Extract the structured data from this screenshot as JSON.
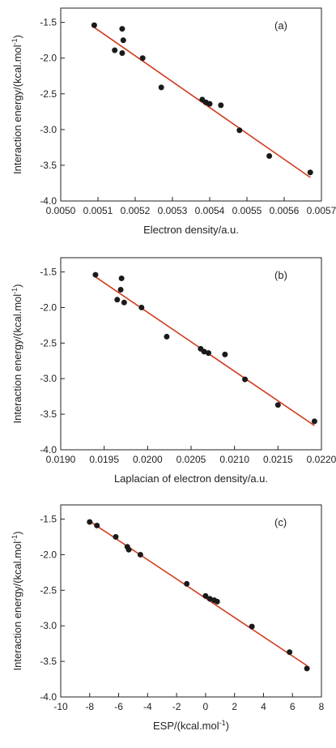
{
  "chart_data": [
    {
      "type": "scatter",
      "panel_label": "(a)",
      "xlabel": "Electron density/a.u.",
      "ylabel_main": "Interaction energy/(kcal.mol",
      "ylabel_sup": "-1",
      "ylabel_tail": ")",
      "xlim": [
        0.005,
        0.0057
      ],
      "ylim": [
        -4.0,
        -1.3
      ],
      "xticks": [
        0.005,
        0.0051,
        0.0052,
        0.0053,
        0.0054,
        0.0055,
        0.0056,
        0.0057
      ],
      "xtick_labels": [
        "0.0050",
        "0.0051",
        "0.0052",
        "0.0053",
        "0.0054",
        "0.0055",
        "0.0056",
        "0.0057"
      ],
      "yticks": [
        -1.5,
        -2.0,
        -2.5,
        -3.0,
        -3.5,
        -4.0
      ],
      "ytick_labels": [
        "-1.5",
        "-2.0",
        "-2.5",
        "-3.0",
        "-3.5",
        "-4.0"
      ],
      "points": [
        [
          0.00509,
          -1.54
        ],
        [
          0.005145,
          -1.89
        ],
        [
          0.005165,
          -1.59
        ],
        [
          0.005168,
          -1.75
        ],
        [
          0.005165,
          -1.93
        ],
        [
          0.00522,
          -2.0
        ],
        [
          0.00527,
          -2.41
        ],
        [
          0.00538,
          -2.58
        ],
        [
          0.00539,
          -2.62
        ],
        [
          0.0054,
          -2.64
        ],
        [
          0.00543,
          -2.66
        ],
        [
          0.00548,
          -3.01
        ],
        [
          0.00556,
          -3.37
        ],
        [
          0.00567,
          -3.6
        ]
      ],
      "fit_line": [
        [
          0.00509,
          -1.57
        ],
        [
          0.00567,
          -3.67
        ]
      ],
      "point_color": "#1a1a1a",
      "line_color": "#d23a1f"
    },
    {
      "type": "scatter",
      "panel_label": "(b)",
      "xlabel": "Laplacian of electron density/a.u.",
      "ylabel_main": "Interaction energy/(kcal.mol",
      "ylabel_sup": "-1",
      "ylabel_tail": ")",
      "xlim": [
        0.019,
        0.022
      ],
      "ylim": [
        -4.0,
        -1.3
      ],
      "xticks": [
        0.019,
        0.0195,
        0.02,
        0.0205,
        0.021,
        0.0215,
        0.022
      ],
      "xtick_labels": [
        "0.0190",
        "0.0195",
        "0.0200",
        "0.0205",
        "0.0210",
        "0.0215",
        "0.0220"
      ],
      "yticks": [
        -1.5,
        -2.0,
        -2.5,
        -3.0,
        -3.5,
        -4.0
      ],
      "ytick_labels": [
        "-1.5",
        "-2.0",
        "-2.5",
        "-3.0",
        "-3.5",
        "-4.0"
      ],
      "points": [
        [
          0.0194,
          -1.54
        ],
        [
          0.01965,
          -1.89
        ],
        [
          0.0197,
          -1.59
        ],
        [
          0.01969,
          -1.75
        ],
        [
          0.01973,
          -1.93
        ],
        [
          0.01993,
          -2.0
        ],
        [
          0.02022,
          -2.41
        ],
        [
          0.02061,
          -2.58
        ],
        [
          0.02065,
          -2.62
        ],
        [
          0.0207,
          -2.64
        ],
        [
          0.02089,
          -2.66
        ],
        [
          0.02112,
          -3.01
        ],
        [
          0.0215,
          -3.37
        ],
        [
          0.02192,
          -3.6
        ]
      ],
      "fit_line": [
        [
          0.0194,
          -1.57
        ],
        [
          0.02192,
          -3.66
        ]
      ],
      "point_color": "#1a1a1a",
      "line_color": "#d23a1f"
    },
    {
      "type": "scatter",
      "panel_label": "(c)",
      "xlabel_main": "ESP/(kcal.mol",
      "xlabel_sup": "-1",
      "xlabel_tail": ")",
      "ylabel_main": "Interaction energy/(kcal.mol",
      "ylabel_sup": "-1",
      "ylabel_tail": ")",
      "xlim": [
        -10,
        8
      ],
      "ylim": [
        -4.0,
        -1.3
      ],
      "xticks": [
        -10,
        -8,
        -6,
        -4,
        -2,
        0,
        2,
        4,
        6,
        8
      ],
      "xtick_labels": [
        "-10",
        "-8",
        "-6",
        "-4",
        "-2",
        "0",
        "2",
        "4",
        "6",
        "8"
      ],
      "yticks": [
        -1.5,
        -2.0,
        -2.5,
        -3.0,
        -3.5,
        -4.0
      ],
      "ytick_labels": [
        "-1.5",
        "-2.0",
        "-2.5",
        "-3.0",
        "-3.5",
        "-4.0"
      ],
      "points": [
        [
          -8.0,
          -1.54
        ],
        [
          -7.5,
          -1.59
        ],
        [
          -6.2,
          -1.75
        ],
        [
          -5.4,
          -1.89
        ],
        [
          -5.3,
          -1.93
        ],
        [
          -4.5,
          -2.0
        ],
        [
          -1.3,
          -2.41
        ],
        [
          0.0,
          -2.58
        ],
        [
          0.3,
          -2.62
        ],
        [
          0.6,
          -2.64
        ],
        [
          0.8,
          -2.66
        ],
        [
          3.2,
          -3.01
        ],
        [
          5.8,
          -3.37
        ],
        [
          7.0,
          -3.6
        ]
      ],
      "fit_line": [
        [
          -8.0,
          -1.53
        ],
        [
          7.0,
          -3.56
        ]
      ],
      "point_color": "#1a1a1a",
      "line_color": "#d23a1f"
    }
  ]
}
